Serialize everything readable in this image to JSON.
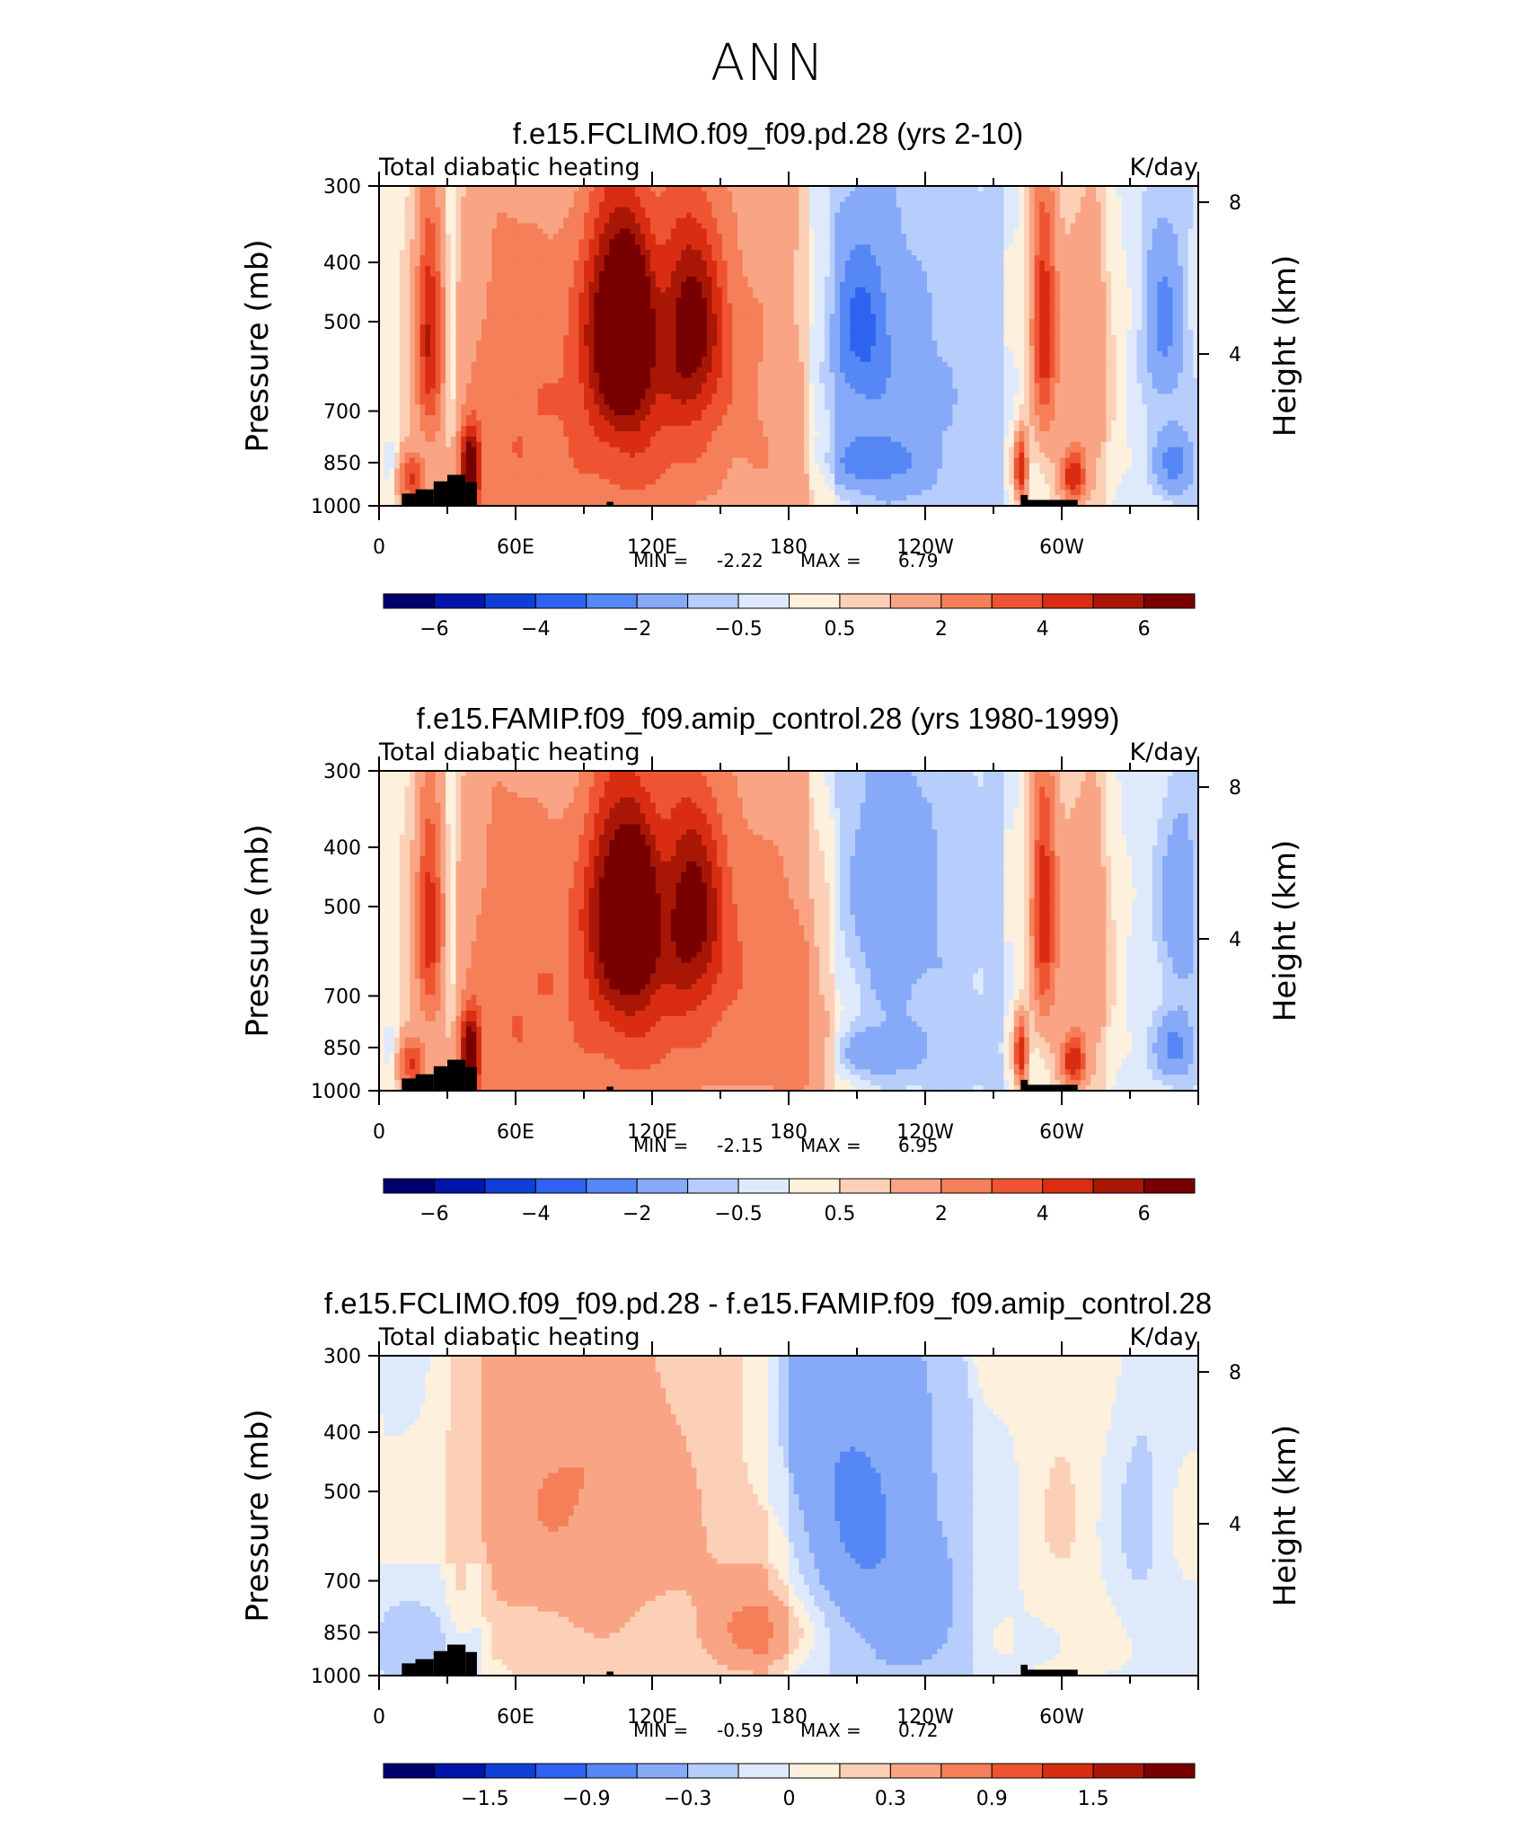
{
  "page_title": "ANN",
  "chart_data": [
    {
      "type": "heatmap",
      "title": "f.e15.FCLIMO.f09_f09.pd.28 (yrs 2-10)",
      "left_label": "Total diabatic heating",
      "right_label": "K/day",
      "ylabel": "Pressure (mb)",
      "ylabel_right": "Height (km)",
      "xticks": [
        "0",
        "60E",
        "120E",
        "180",
        "120W",
        "60W"
      ],
      "yticks": [
        "300",
        "400",
        "500",
        "700",
        "850",
        "1000"
      ],
      "yticks_right": [
        "8",
        "4"
      ],
      "min_label": "MIN =",
      "min_value": "-2.22",
      "max_label": "MAX =",
      "max_value": "6.79",
      "colorbar_labels": [
        "-6",
        "-4",
        "-2",
        "-0.5",
        "0.5",
        "2",
        "4",
        "6"
      ],
      "features": [
        {
          "lon": 22,
          "p": 520,
          "v": 4.5,
          "sl": 4,
          "sp": 160
        },
        {
          "lon": 40,
          "p": 870,
          "v": 6.5,
          "sl": 3,
          "sp": 90
        },
        {
          "lon": 14,
          "p": 900,
          "v": 3.5,
          "sl": 4,
          "sp": 60
        },
        {
          "lon": 55,
          "p": 600,
          "v": 1.5,
          "sl": 15,
          "sp": 400
        },
        {
          "lon": 102,
          "p": 500,
          "v": 4.5,
          "sl": 9,
          "sp": 150
        },
        {
          "lon": 112,
          "p": 520,
          "v": 4.0,
          "sl": 6,
          "sp": 130
        },
        {
          "lon": 138,
          "p": 500,
          "v": 4.2,
          "sl": 10,
          "sp": 140
        },
        {
          "lon": 120,
          "p": 600,
          "v": 2.0,
          "sl": 30,
          "sp": 300
        },
        {
          "lon": 100,
          "p": 800,
          "v": 1.5,
          "sl": 40,
          "sp": 350
        },
        {
          "lon": 175,
          "p": 600,
          "v": 1.0,
          "sl": 15,
          "sp": 300
        },
        {
          "lon": 200,
          "p": 900,
          "v": 0.8,
          "sl": 20,
          "sp": 150
        },
        {
          "lon": 212,
          "p": 500,
          "v": -2.1,
          "sl": 8,
          "sp": 100
        },
        {
          "lon": 212,
          "p": 700,
          "v": -1.2,
          "sl": 25,
          "sp": 250
        },
        {
          "lon": 215,
          "p": 850,
          "v": -1.8,
          "sl": 15,
          "sp": 60
        },
        {
          "lon": 292,
          "p": 500,
          "v": 4.5,
          "sl": 4,
          "sp": 180
        },
        {
          "lon": 282,
          "p": 870,
          "v": 5.0,
          "sl": 2,
          "sp": 80
        },
        {
          "lon": 305,
          "p": 900,
          "v": 4.0,
          "sl": 4,
          "sp": 60
        },
        {
          "lon": 310,
          "p": 600,
          "v": 2.0,
          "sl": 10,
          "sp": 250
        },
        {
          "lon": 345,
          "p": 500,
          "v": -2.0,
          "sl": 6,
          "sp": 120
        },
        {
          "lon": 350,
          "p": 850,
          "v": -2.2,
          "sl": 6,
          "sp": 70
        },
        {
          "lon": 32,
          "p": 500,
          "v": -1.0,
          "sl": 2,
          "sp": 300
        },
        {
          "lon": 5,
          "p": 850,
          "v": -1.0,
          "sl": 3,
          "sp": 60
        }
      ]
    },
    {
      "type": "heatmap",
      "title": "f.e15.FAMIP.f09_f09.amip_control.28 (yrs 1980-1999)",
      "left_label": "Total diabatic heating",
      "right_label": "K/day",
      "ylabel": "Pressure (mb)",
      "ylabel_right": "Height (km)",
      "xticks": [
        "0",
        "60E",
        "120E",
        "180",
        "120W",
        "60W"
      ],
      "yticks": [
        "300",
        "400",
        "500",
        "700",
        "850",
        "1000"
      ],
      "yticks_right": [
        "8",
        "4"
      ],
      "min_label": "MIN =",
      "min_value": "-2.15",
      "max_label": "MAX =",
      "max_value": "6.95",
      "colorbar_labels": [
        "-6",
        "-4",
        "-2",
        "-0.5",
        "0.5",
        "2",
        "4",
        "6"
      ],
      "features": [
        {
          "lon": 22,
          "p": 520,
          "v": 4.0,
          "sl": 4,
          "sp": 160
        },
        {
          "lon": 40,
          "p": 870,
          "v": 6.5,
          "sl": 3,
          "sp": 90
        },
        {
          "lon": 14,
          "p": 900,
          "v": 3.5,
          "sl": 4,
          "sp": 60
        },
        {
          "lon": 55,
          "p": 600,
          "v": 1.6,
          "sl": 15,
          "sp": 400
        },
        {
          "lon": 103,
          "p": 500,
          "v": 4.2,
          "sl": 9,
          "sp": 150
        },
        {
          "lon": 114,
          "p": 520,
          "v": 3.8,
          "sl": 6,
          "sp": 130
        },
        {
          "lon": 138,
          "p": 500,
          "v": 4.0,
          "sl": 10,
          "sp": 140
        },
        {
          "lon": 122,
          "p": 600,
          "v": 2.2,
          "sl": 32,
          "sp": 300
        },
        {
          "lon": 100,
          "p": 800,
          "v": 1.3,
          "sl": 40,
          "sp": 350
        },
        {
          "lon": 178,
          "p": 650,
          "v": 1.5,
          "sl": 15,
          "sp": 300
        },
        {
          "lon": 200,
          "p": 900,
          "v": 0.8,
          "sl": 20,
          "sp": 150
        },
        {
          "lon": 225,
          "p": 500,
          "v": -1.1,
          "sl": 15,
          "sp": 200
        },
        {
          "lon": 215,
          "p": 870,
          "v": -1.6,
          "sl": 14,
          "sp": 60
        },
        {
          "lon": 292,
          "p": 500,
          "v": 4.5,
          "sl": 4,
          "sp": 180
        },
        {
          "lon": 282,
          "p": 870,
          "v": 5.0,
          "sl": 2,
          "sp": 80
        },
        {
          "lon": 305,
          "p": 900,
          "v": 4.0,
          "sl": 4,
          "sp": 60
        },
        {
          "lon": 310,
          "p": 600,
          "v": 2.0,
          "sl": 10,
          "sp": 250
        },
        {
          "lon": 352,
          "p": 500,
          "v": -1.5,
          "sl": 6,
          "sp": 120
        },
        {
          "lon": 350,
          "p": 850,
          "v": -2.0,
          "sl": 6,
          "sp": 70
        },
        {
          "lon": 32,
          "p": 500,
          "v": -1.0,
          "sl": 2,
          "sp": 300
        },
        {
          "lon": 5,
          "p": 850,
          "v": -1.0,
          "sl": 3,
          "sp": 60
        }
      ]
    },
    {
      "type": "heatmap",
      "title": "f.e15.FCLIMO.f09_f09.pd.28 - f.e15.FAMIP.f09_f09.amip_control.28",
      "left_label": "Total diabatic heating",
      "right_label": "K/day",
      "ylabel": "Pressure (mb)",
      "ylabel_right": "Height (km)",
      "xticks": [
        "0",
        "60E",
        "120E",
        "180",
        "120W",
        "60W"
      ],
      "yticks": [
        "300",
        "400",
        "500",
        "700",
        "850",
        "1000"
      ],
      "yticks_right": [
        "8",
        "4"
      ],
      "min_label": "MIN =",
      "min_value": "-0.59",
      "max_label": "MAX =",
      "max_value": "0.72",
      "colorbar_labels": [
        "-1.5",
        "-0.9",
        "-0.3",
        "0",
        "0.3",
        "0.9",
        "1.5"
      ],
      "features": [
        {
          "lon": 100,
          "p": 500,
          "v": 0.45,
          "sl": 25,
          "sp": 220
        },
        {
          "lon": 60,
          "p": 500,
          "v": 0.25,
          "sl": 20,
          "sp": 250
        },
        {
          "lon": 170,
          "p": 850,
          "v": 0.5,
          "sl": 15,
          "sp": 80
        },
        {
          "lon": 175,
          "p": 700,
          "v": 0.3,
          "sl": 25,
          "sp": 200
        },
        {
          "lon": 200,
          "p": 500,
          "v": -0.45,
          "sl": 22,
          "sp": 220
        },
        {
          "lon": 225,
          "p": 700,
          "v": -0.3,
          "sl": 25,
          "sp": 250
        },
        {
          "lon": 335,
          "p": 550,
          "v": -0.2,
          "sl": 8,
          "sp": 200
        },
        {
          "lon": 20,
          "p": 900,
          "v": -0.15,
          "sl": 20,
          "sp": 100
        },
        {
          "lon": 300,
          "p": 500,
          "v": 0.15,
          "sl": 10,
          "sp": 250
        },
        {
          "lon": 35,
          "p": 600,
          "v": 0.2,
          "sl": 4,
          "sp": 200
        }
      ]
    }
  ]
}
